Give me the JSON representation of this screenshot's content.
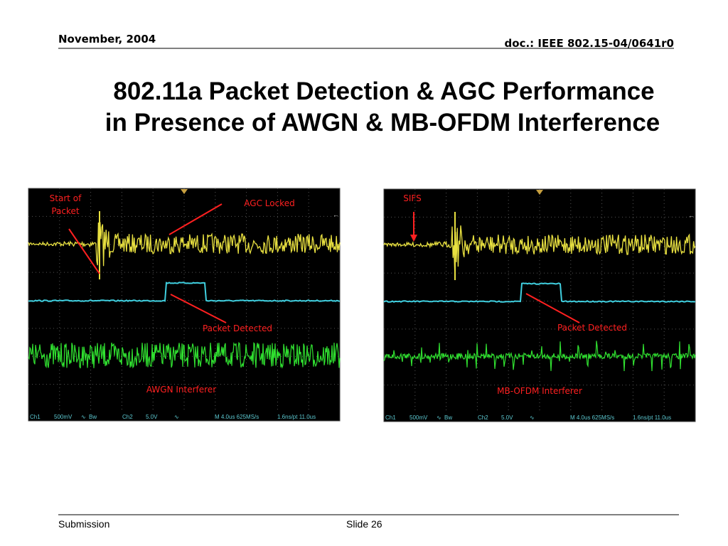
{
  "header": {
    "date": "November, 2004",
    "doc": "doc.: IEEE 802.15-04/0641r0"
  },
  "title": [
    "802.11a Packet Detection & AGC Performance",
    "in Presence of AWGN & MB-OFDM Interference"
  ],
  "panels": [
    {
      "start_of_packet": [
        "Start of",
        "Packet"
      ],
      "agc_locked": "AGC Locked",
      "packet_detected": "Packet Detected",
      "interferer": "AWGN Interferer",
      "status": [
        "Ch1",
        "500mV",
        "Bw",
        "Ch2",
        "5.0V",
        "M 4.0us 625MS/s",
        "1.6ns/pt 11.0us"
      ]
    },
    {
      "sifs": "SIFS",
      "packet_detected": "Packet Detected",
      "interferer": "MB-OFDM Interferer",
      "status": [
        "Ch1",
        "500mV",
        "Bw",
        "Ch2",
        "5.0V",
        "M 4.0us 625MS/s",
        "1.6ns/pt 11.0us"
      ]
    }
  ],
  "footer": {
    "left": "Submission",
    "center": "Slide 26"
  }
}
